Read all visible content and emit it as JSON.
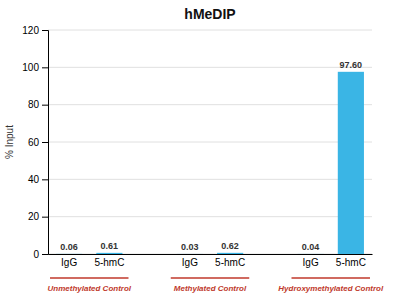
{
  "chart_data": {
    "type": "bar",
    "title": "hMeDIP",
    "ylabel": "% Input",
    "categories": [
      "IgG",
      "5-hmC",
      "IgG",
      "5-hmC",
      "IgG",
      "5-hmC"
    ],
    "values": [
      0.06,
      0.61,
      0.03,
      0.62,
      0.04,
      97.6
    ],
    "value_labels": [
      "0.06",
      "0.61",
      "0.03",
      "0.62",
      "0.04",
      "97.60"
    ],
    "data_labels": true,
    "color": "#3ab5e5",
    "ylim": [
      0,
      120
    ],
    "yticks": [
      0,
      20,
      40,
      60,
      80,
      100,
      120
    ],
    "grid": true,
    "annotations": [
      {
        "text": "Unmethylated Control",
        "color": "#c0392b"
      },
      {
        "text": "Methylated Control",
        "color": "#c0392b"
      },
      {
        "text": "Hydroxymethylated Control",
        "color": "#c0392b"
      }
    ]
  }
}
